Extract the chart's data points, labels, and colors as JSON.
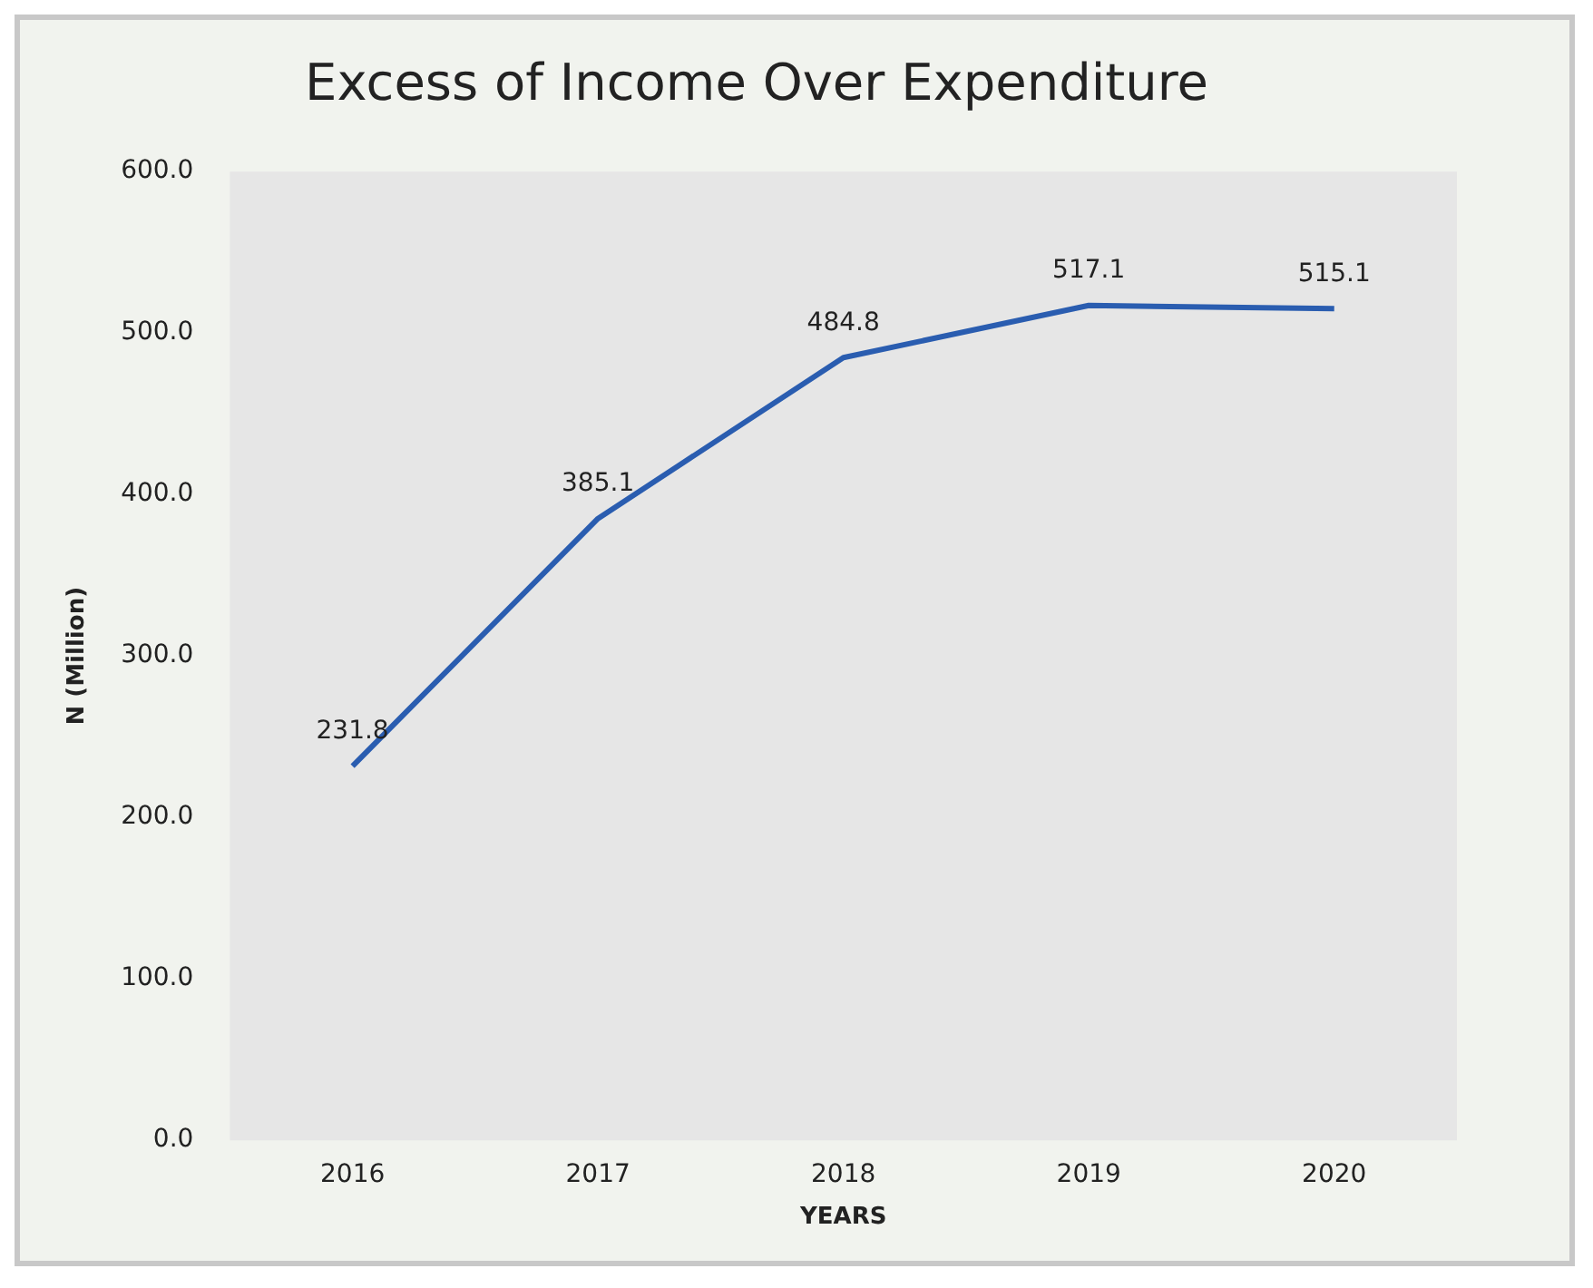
{
  "chart_data": {
    "type": "line",
    "title": "Excess of Income Over Expenditure",
    "xlabel": "YEARS",
    "ylabel": "N (Million)",
    "categories": [
      "2016",
      "2017",
      "2018",
      "2019",
      "2020"
    ],
    "series": [
      {
        "color": "#2a5db0",
        "values": [
          231.8,
          385.1,
          484.8,
          517.1,
          515.1
        ]
      }
    ],
    "ylim": [
      0,
      600
    ],
    "yticks": [
      {
        "value": 0,
        "label": "0.0"
      },
      {
        "value": 100,
        "label": "100.0"
      },
      {
        "value": 200,
        "label": "200.0"
      },
      {
        "value": 300,
        "label": "300.0"
      },
      {
        "value": 400,
        "label": "400.0"
      },
      {
        "value": 500,
        "label": "500.0"
      },
      {
        "value": 600,
        "label": "600.0"
      }
    ],
    "data_labels": true,
    "grid": false,
    "legend": false,
    "marker": "none"
  }
}
